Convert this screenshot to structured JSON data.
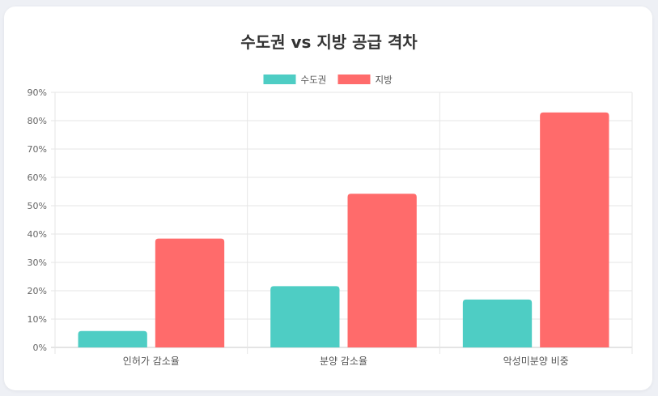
{
  "chart_data": {
    "type": "bar",
    "title": "수도권 vs 지방 공급 격차",
    "categories": [
      "인허가 감소율",
      "분양 감소율",
      "악성미분양 비중"
    ],
    "series": [
      {
        "name": "수도권",
        "color": "#4ecdc4",
        "values": [
          5.8,
          21.6,
          16.9
        ]
      },
      {
        "name": "지방",
        "color": "#ff6b6b",
        "values": [
          38.4,
          54.2,
          82.9
        ]
      }
    ],
    "ylim": [
      0,
      90
    ],
    "yticks": [
      "0%",
      "10%",
      "20%",
      "30%",
      "40%",
      "50%",
      "60%",
      "70%",
      "80%",
      "90%"
    ],
    "legend_position": "top-center",
    "grid": true
  }
}
